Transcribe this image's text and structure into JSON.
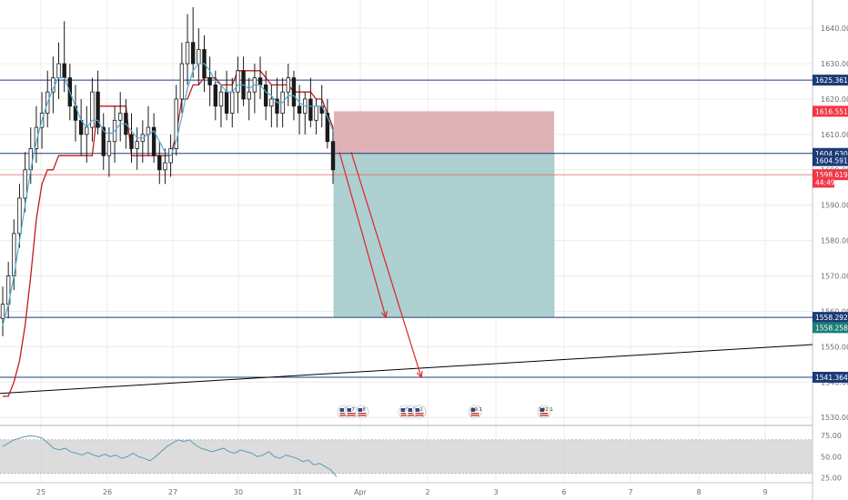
{
  "colors": {
    "background": "#ffffff",
    "plot_background": "#e5e5e5",
    "grid": "#ececec",
    "candle": "#1a1a1a",
    "fast_ma": "#55aad2",
    "trail_line": "#c21b1b",
    "blue_level": "#1c3c78",
    "red_level": "#e57373",
    "stop_zone": "#d9a5ab",
    "target_zone": "#a6cccc",
    "target_zone_edge": "#7fb3b3",
    "arrow": "#e02424",
    "trendline": "#000000",
    "rsi_line": "#5a9bb4",
    "rsi_band": "#d3d3d3",
    "badge_blue": "#1c3c78",
    "badge_red": "#f23645",
    "badge_teal": "#1b8074",
    "event_icon": "us-flag-event-icon"
  },
  "chart_data": [
    {
      "type": "candlestick",
      "panel": "price",
      "ylim": [
        1528,
        1648
      ],
      "x_tick_labels": [
        "25",
        "26",
        "27",
        "30",
        "31",
        "Apr",
        "2",
        "3",
        "6",
        "7",
        "8",
        "9"
      ],
      "y_tick_labels": [
        "1640.000",
        "1630.000",
        "1620.000",
        "1610.000",
        "1600.000",
        "1590.000",
        "1580.000",
        "1570.000",
        "1560.000",
        "1550.000",
        "1540.000",
        "1530.000"
      ],
      "horizontal_levels": [
        {
          "value": 1625.361,
          "label": "1625.361",
          "color": "blue"
        },
        {
          "value": 1604.63,
          "label": "1604.630",
          "color": "blue"
        },
        {
          "value": 1558.292,
          "label": "1558.292",
          "color": "blue"
        },
        {
          "value": 1541.364,
          "label": "1541.364",
          "color": "blue"
        },
        {
          "value": 1598.619,
          "label": "1598.619",
          "color": "red"
        }
      ],
      "price_badges": [
        {
          "label": "1616.551",
          "value": 1616.551,
          "color": "red"
        },
        {
          "label": "1604.591",
          "value": 1602.6,
          "color": "blue"
        },
        {
          "label": "44:49",
          "value": 1596.5,
          "color": "red"
        },
        {
          "label": "1558.258",
          "value": 1555.4,
          "color": "teal"
        }
      ],
      "short_position": {
        "stop": 1616.551,
        "entry": 1604.63,
        "target": 1558.292
      },
      "trendline": {
        "from": [
          0,
          1536.8
        ],
        "to": [
          1,
          1550.6
        ]
      },
      "projection_arrows": [
        {
          "from": 1605,
          "to": 1558.292
        },
        {
          "from": 1605,
          "to": 1541.364
        }
      ],
      "candles": [
        [
          1558,
          1567,
          1553,
          1562
        ],
        [
          1562,
          1574,
          1558,
          1570
        ],
        [
          1570,
          1586,
          1566,
          1582
        ],
        [
          1582,
          1596,
          1578,
          1592
        ],
        [
          1592,
          1605,
          1588,
          1600
        ],
        [
          1600,
          1612,
          1596,
          1606
        ],
        [
          1606,
          1618,
          1602,
          1612
        ],
        [
          1612,
          1622,
          1606,
          1616
        ],
        [
          1616,
          1628,
          1612,
          1622
        ],
        [
          1622,
          1632,
          1616,
          1626
        ],
        [
          1626,
          1636,
          1620,
          1630
        ],
        [
          1630,
          1642,
          1622,
          1626
        ],
        [
          1626,
          1630,
          1614,
          1618
        ],
        [
          1618,
          1624,
          1608,
          1614
        ],
        [
          1614,
          1620,
          1604,
          1610
        ],
        [
          1610,
          1618,
          1602,
          1612
        ],
        [
          1612,
          1626,
          1608,
          1622
        ],
        [
          1622,
          1628,
          1610,
          1612
        ],
        [
          1612,
          1616,
          1600,
          1604
        ],
        [
          1604,
          1612,
          1598,
          1608
        ],
        [
          1608,
          1618,
          1602,
          1614
        ],
        [
          1614,
          1622,
          1608,
          1616
        ],
        [
          1616,
          1620,
          1606,
          1610
        ],
        [
          1610,
          1616,
          1602,
          1606
        ],
        [
          1606,
          1612,
          1600,
          1608
        ],
        [
          1608,
          1614,
          1602,
          1610
        ],
        [
          1610,
          1618,
          1604,
          1612
        ],
        [
          1612,
          1616,
          1602,
          1604
        ],
        [
          1604,
          1608,
          1596,
          1600
        ],
        [
          1600,
          1606,
          1596,
          1602
        ],
        [
          1602,
          1610,
          1598,
          1606
        ],
        [
          1606,
          1624,
          1604,
          1620
        ],
        [
          1620,
          1636,
          1616,
          1630
        ],
        [
          1630,
          1644,
          1624,
          1636
        ],
        [
          1636,
          1646,
          1626,
          1630
        ],
        [
          1630,
          1640,
          1624,
          1634
        ],
        [
          1634,
          1638,
          1622,
          1626
        ],
        [
          1626,
          1632,
          1618,
          1624
        ],
        [
          1624,
          1628,
          1614,
          1618
        ],
        [
          1618,
          1624,
          1612,
          1622
        ],
        [
          1622,
          1628,
          1614,
          1616
        ],
        [
          1616,
          1626,
          1612,
          1622
        ],
        [
          1622,
          1632,
          1616,
          1628
        ],
        [
          1628,
          1632,
          1618,
          1620
        ],
        [
          1620,
          1626,
          1614,
          1622
        ],
        [
          1622,
          1630,
          1616,
          1626
        ],
        [
          1626,
          1632,
          1620,
          1624
        ],
        [
          1624,
          1628,
          1614,
          1618
        ],
        [
          1618,
          1624,
          1612,
          1620
        ],
        [
          1620,
          1626,
          1612,
          1616
        ],
        [
          1616,
          1626,
          1612,
          1622
        ],
        [
          1622,
          1630,
          1618,
          1626
        ],
        [
          1626,
          1628,
          1614,
          1618
        ],
        [
          1618,
          1624,
          1610,
          1616
        ],
        [
          1616,
          1622,
          1610,
          1620
        ],
        [
          1620,
          1626,
          1612,
          1614
        ],
        [
          1614,
          1620,
          1610,
          1618
        ],
        [
          1618,
          1624,
          1612,
          1616
        ],
        [
          1616,
          1620,
          1606,
          1608
        ],
        [
          1608,
          1612,
          1596,
          1600
        ]
      ],
      "fast_ma": [
        1556,
        1562,
        1570,
        1580,
        1590,
        1600,
        1608,
        1614,
        1619,
        1623,
        1626,
        1626,
        1622,
        1618,
        1614,
        1612,
        1614,
        1614,
        1611,
        1610,
        1611,
        1613,
        1613,
        1611,
        1609,
        1609,
        1610,
        1611,
        1608,
        1605,
        1604,
        1608,
        1615,
        1623,
        1628,
        1630,
        1630,
        1628,
        1625,
        1624,
        1622,
        1622,
        1624,
        1624,
        1623,
        1624,
        1624,
        1622,
        1621,
        1619,
        1619,
        1621,
        1621,
        1619,
        1618,
        1618,
        1618,
        1618,
        1615,
        1611
      ],
      "trail_line": [
        1536,
        1536,
        1540,
        1546,
        1556,
        1570,
        1586,
        1596,
        1600,
        1600,
        1604,
        1604,
        1604,
        1604,
        1604,
        1604,
        1604,
        1618,
        1618,
        1618,
        1618,
        1618,
        1618,
        1604,
        1604,
        1604,
        1604,
        1604,
        1604,
        1604,
        1604,
        1610,
        1620,
        1620,
        1624,
        1624,
        1626,
        1626,
        1626,
        1624,
        1624,
        1624,
        1628,
        1628,
        1628,
        1628,
        1628,
        1626,
        1624,
        1624,
        1624,
        1624,
        1622,
        1622,
        1622,
        1622,
        1620,
        1620,
        1616,
        1612
      ]
    },
    {
      "type": "line",
      "panel": "rsi",
      "ylim": [
        20,
        85
      ],
      "y_tick_labels": [
        "75.00",
        "50.00",
        "25.00"
      ],
      "band": [
        30,
        70
      ],
      "values": [
        62,
        66,
        70,
        72,
        74,
        75,
        74,
        72,
        66,
        60,
        58,
        60,
        56,
        54,
        52,
        55,
        52,
        50,
        53,
        50,
        52,
        48,
        50,
        54,
        50,
        48,
        45,
        50,
        56,
        62,
        66,
        70,
        68,
        70,
        64,
        60,
        58,
        56,
        58,
        60,
        56,
        54,
        58,
        56,
        54,
        50,
        52,
        56,
        50,
        48,
        52,
        50,
        48,
        44,
        46,
        40,
        42,
        38,
        34,
        26
      ]
    },
    {
      "type": "events",
      "labels": [
        "3",
        "7",
        "8",
        "0",
        "3",
        "7",
        "2",
        "29.1",
        "102.1"
      ]
    }
  ]
}
